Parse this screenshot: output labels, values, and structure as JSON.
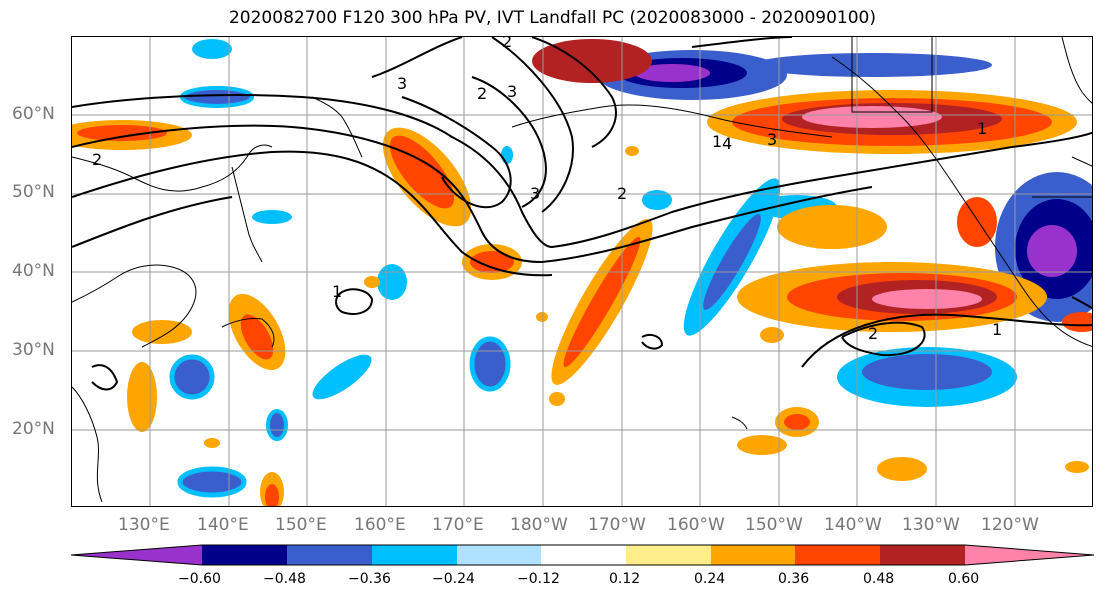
{
  "title": "2020082700 F120 300 hPa PV, IVT Landfall PC (2020083000 - 2020090100)",
  "map": {
    "lat_labels": [
      "60°N",
      "50°N",
      "40°N",
      "30°N",
      "20°N"
    ],
    "lon_labels": [
      "130°E",
      "140°E",
      "150°E",
      "160°E",
      "170°E",
      "180°W",
      "170°W",
      "160°W",
      "150°W",
      "140°W",
      "130°W",
      "120°W"
    ],
    "contour_labels": [
      "3",
      "2",
      "3",
      "2",
      "3",
      "2",
      "1",
      "4",
      "3",
      "1",
      "2",
      "1",
      "2",
      "1"
    ]
  },
  "colorbar": {
    "colors": [
      "#9932CC",
      "#00008B",
      "#3A5FCD",
      "#00BFFF",
      "#B0E2FF",
      "#FFFFFF",
      "#FFEC8B",
      "#FFA500",
      "#FF4500",
      "#B22222",
      "#FF82AB"
    ],
    "tick_labels": [
      "−0.60",
      "−0.48",
      "−0.36",
      "−0.24",
      "−0.12",
      "0.12",
      "0.24",
      "0.36",
      "0.48",
      "0.60"
    ]
  }
}
